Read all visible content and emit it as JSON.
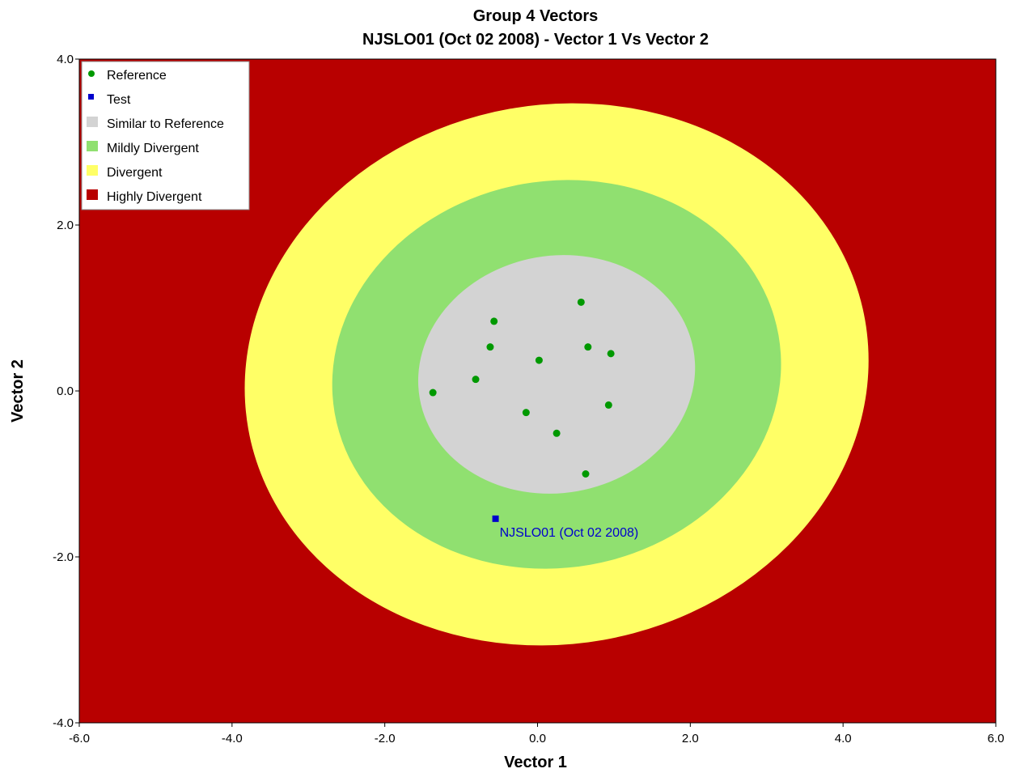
{
  "chart_data": {
    "type": "scatter",
    "title": "Group 4 Vectors",
    "subtitle": "NJSLO01 (Oct 02 2008) - Vector 1 Vs Vector 2",
    "xlabel": "Vector 1",
    "ylabel": "Vector 2",
    "xlim": [
      -6.0,
      6.0
    ],
    "ylim": [
      -4.0,
      4.0
    ],
    "x_ticks": [
      "-6.0",
      "-4.0",
      "-2.0",
      "0.0",
      "2.0",
      "4.0",
      "6.0"
    ],
    "y_ticks": [
      "-4.0",
      "-2.0",
      "0.0",
      "2.0",
      "4.0"
    ],
    "x_tick_values": [
      -6,
      -4,
      -2,
      0,
      2,
      4,
      6
    ],
    "y_tick_values": [
      -4,
      -2,
      0,
      2,
      4
    ],
    "grid": false,
    "legend_position": "top-left",
    "legend": [
      {
        "label": "Reference",
        "symbol": "dot",
        "color": "#009900"
      },
      {
        "label": "Test",
        "symbol": "square",
        "color": "#0000cc"
      },
      {
        "label": "Similar to Reference",
        "symbol": "square",
        "color": "#d3d3d3"
      },
      {
        "label": "Mildly Divergent",
        "symbol": "square",
        "color": "#90e070"
      },
      {
        "label": "Divergent",
        "symbol": "square",
        "color": "#ffff66"
      },
      {
        "label": "Highly Divergent",
        "symbol": "square",
        "color": "#b80000"
      }
    ],
    "zones": [
      {
        "name": "Highly Divergent",
        "color": "#b80000"
      },
      {
        "name": "Divergent",
        "color": "#ffff66",
        "center": [
          0.25,
          0.2
        ],
        "rx": 4.1,
        "ry": 3.25,
        "rotation_deg": -10
      },
      {
        "name": "Mildly Divergent",
        "color": "#90e070",
        "center": [
          0.25,
          0.2
        ],
        "rx": 2.95,
        "ry": 2.33,
        "rotation_deg": -10
      },
      {
        "name": "Similar to Reference",
        "color": "#d3d3d3",
        "center": [
          0.25,
          0.2
        ],
        "rx": 1.82,
        "ry": 1.43,
        "rotation_deg": -10
      }
    ],
    "series": [
      {
        "name": "Reference",
        "color": "#009900",
        "points": [
          [
            0.57,
            1.07
          ],
          [
            -0.57,
            0.84
          ],
          [
            -0.62,
            0.53
          ],
          [
            0.66,
            0.53
          ],
          [
            0.96,
            0.45
          ],
          [
            0.02,
            0.37
          ],
          [
            -0.81,
            0.14
          ],
          [
            -1.37,
            -0.02
          ],
          [
            0.93,
            -0.17
          ],
          [
            -0.15,
            -0.26
          ],
          [
            0.25,
            -0.51
          ],
          [
            0.63,
            -1.0
          ]
        ]
      },
      {
        "name": "Test",
        "color": "#0000cc",
        "points": [
          [
            -0.55,
            -1.54
          ]
        ],
        "labels": [
          "NJSLO01 (Oct 02 2008)"
        ]
      }
    ]
  }
}
